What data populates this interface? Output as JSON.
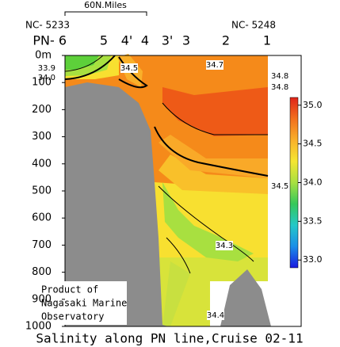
{
  "chart_data": {
    "type": "contour",
    "title": "Salinity along PN line,Cruise 02-11",
    "scale_label": "60N.Miles",
    "station_codes": [
      "NC- 5233",
      "NC- 5248"
    ],
    "stations": [
      "PN- 6",
      "5",
      "4'",
      "4",
      "3'",
      "3",
      "2",
      "1"
    ],
    "annotation": [
      "Product of",
      "Nagasaki Marine",
      "Observatory"
    ],
    "ylim": [
      0,
      1000
    ],
    "yticks": [
      {
        "value": 0,
        "label": "0m"
      },
      100,
      200,
      300,
      400,
      500,
      600,
      700,
      800,
      900,
      1000
    ],
    "contour_labels": [
      33.9,
      {
        "value": 34,
        "label": "34.0"
      },
      34.5,
      34.7,
      34.8,
      34.8,
      34.5,
      34.3,
      34.4
    ],
    "colorbar": {
      "lim": [
        32.9,
        35.1
      ],
      "ticks": [
        {
          "value": 35,
          "label": "35.0"
        },
        34.5,
        {
          "value": 34,
          "label": "34.0"
        },
        33.5,
        {
          "value": 33,
          "label": "33.0"
        }
      ],
      "colors": [
        "#1a1ae0",
        "#1a8ee8",
        "#25c8c8",
        "#35c85a",
        "#a8e040",
        "#f5e630",
        "#f9b02a",
        "#f2701e",
        "#e0241a"
      ]
    }
  }
}
